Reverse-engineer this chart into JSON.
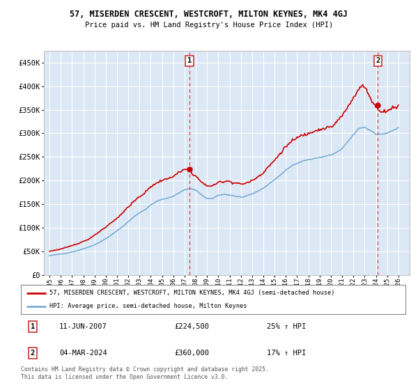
{
  "title_line1": "57, MISERDEN CRESCENT, WESTCROFT, MILTON KEYNES, MK4 4GJ",
  "title_line2": "Price paid vs. HM Land Registry's House Price Index (HPI)",
  "legend_label1": "57, MISERDEN CRESCENT, WESTCROFT, MILTON KEYNES, MK4 4GJ (semi-detached house)",
  "legend_label2": "HPI: Average price, semi-detached house, Milton Keynes",
  "annotation1": {
    "num": "1",
    "date": "11-JUN-2007",
    "price": "£224,500",
    "change": "25% ↑ HPI"
  },
  "annotation2": {
    "num": "2",
    "date": "04-MAR-2024",
    "price": "£360,000",
    "change": "17% ↑ HPI"
  },
  "footnote": "Contains HM Land Registry data © Crown copyright and database right 2025.\nThis data is licensed under the Open Government Licence v3.0.",
  "color_red": "#cc0000",
  "color_blue": "#7aaed4",
  "color_dashed": "#dd4444",
  "background_plot": "#dce8f5",
  "background_fig": "#ffffff",
  "grid_color": "#ffffff",
  "ylim": [
    0,
    475000
  ],
  "xlim_start": 1994.5,
  "xlim_end": 2027.0,
  "sale1_x": 2007.44,
  "sale1_y": 224500,
  "sale2_x": 2024.17,
  "sale2_y": 360000,
  "vline1_x": 2007.44,
  "vline2_x": 2024.17,
  "yticks": [
    0,
    50000,
    100000,
    150000,
    200000,
    250000,
    300000,
    350000,
    400000,
    450000
  ]
}
